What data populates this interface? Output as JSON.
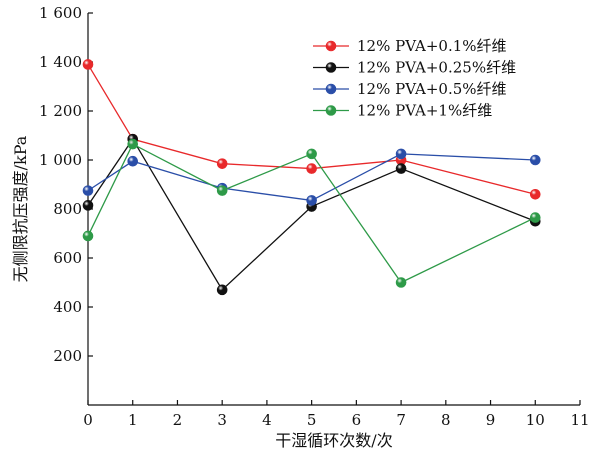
{
  "chart_data": {
    "type": "line",
    "title": "",
    "xlabel": "干湿循环次数/次",
    "ylabel": "无侧限抗压强度/kPa",
    "xlim": [
      0,
      11
    ],
    "ylim": [
      0,
      1600
    ],
    "xticks": [
      0,
      1,
      2,
      3,
      4,
      5,
      6,
      7,
      8,
      9,
      10,
      11
    ],
    "xtick_labels": [
      "0",
      "1",
      "2",
      "3",
      "4",
      "5",
      "6",
      "7",
      "8",
      "9",
      "10",
      "11"
    ],
    "yticks": [
      200,
      400,
      600,
      800,
      1000,
      1200,
      1400,
      1600
    ],
    "ytick_labels": [
      "200",
      "400",
      "600",
      "800",
      "1 000",
      "1 200",
      "1 400",
      "1 600"
    ],
    "x": [
      0,
      1,
      3,
      5,
      7,
      10
    ],
    "grid": false,
    "legend_position": "top-right",
    "series": [
      {
        "name": "12% PVA+0.1%纤维",
        "color": "#e8292b",
        "values": [
          1390,
          1085,
          985,
          965,
          1000,
          860
        ]
      },
      {
        "name": "12% PVA+0.25%纤维",
        "color": "#111111",
        "values": [
          815,
          1085,
          470,
          810,
          965,
          750
        ]
      },
      {
        "name": "12% PVA+0.5%纤维",
        "color": "#2a4ea8",
        "values": [
          875,
          995,
          885,
          835,
          1025,
          1000
        ]
      },
      {
        "name": "12% PVA+1%纤维",
        "color": "#2e9a48",
        "values": [
          690,
          1065,
          875,
          1025,
          500,
          765
        ]
      }
    ]
  }
}
